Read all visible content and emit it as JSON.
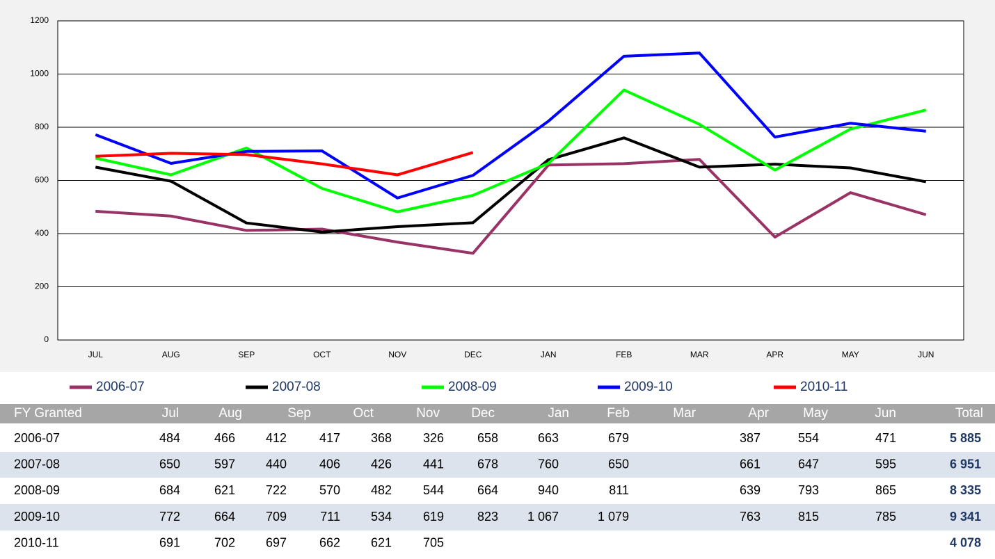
{
  "chart_data": {
    "type": "line",
    "categories": [
      "JUL",
      "AUG",
      "SEP",
      "OCT",
      "NOV",
      "DEC",
      "JAN",
      "FEB",
      "MAR",
      "APR",
      "MAY",
      "JUN"
    ],
    "series": [
      {
        "name": "2006-07",
        "color": "#993366",
        "values": [
          484,
          466,
          412,
          417,
          368,
          326,
          658,
          663,
          679,
          387,
          554,
          471
        ]
      },
      {
        "name": "2007-08",
        "color": "#000000",
        "values": [
          650,
          597,
          440,
          406,
          426,
          441,
          678,
          760,
          650,
          661,
          647,
          595
        ]
      },
      {
        "name": "2008-09",
        "color": "#00ff00",
        "values": [
          684,
          621,
          722,
          570,
          482,
          544,
          664,
          940,
          811,
          639,
          793,
          865
        ]
      },
      {
        "name": "2009-10",
        "color": "#0000ff",
        "values": [
          772,
          664,
          709,
          711,
          534,
          619,
          823,
          1067,
          1079,
          763,
          815,
          785
        ]
      },
      {
        "name": "2010-11",
        "color": "#ff0000",
        "values": [
          691,
          702,
          697,
          662,
          621,
          705,
          null,
          null,
          null,
          null,
          null,
          null
        ]
      }
    ],
    "ylim": [
      0,
      1200
    ],
    "yticks": [
      0,
      200,
      400,
      600,
      800,
      1000,
      1200
    ],
    "grid": true
  },
  "table": {
    "header": [
      "FY Granted",
      "Jul",
      "Aug",
      "Sep",
      "Oct",
      "Nov",
      "Dec",
      "Jan",
      "Feb",
      "Mar",
      "Apr",
      "May",
      "Jun",
      "Total"
    ],
    "rows": [
      [
        "2006-07",
        "484",
        "466",
        "412",
        "417",
        "368",
        "326",
        "658",
        "663",
        "679",
        "387",
        "554",
        "471",
        "5 885"
      ],
      [
        "2007-08",
        "650",
        "597",
        "440",
        "406",
        "426",
        "441",
        "678",
        "760",
        "650",
        "661",
        "647",
        "595",
        "6 951"
      ],
      [
        "2008-09",
        "684",
        "621",
        "722",
        "570",
        "482",
        "544",
        "664",
        "940",
        "811",
        "639",
        "793",
        "865",
        "8 335"
      ],
      [
        "2009-10",
        "772",
        "664",
        "709",
        "711",
        "534",
        "619",
        "823",
        "1 067",
        "1 079",
        "763",
        "815",
        "785",
        "9 341"
      ],
      [
        "2010-11",
        "691",
        "702",
        "697",
        "662",
        "621",
        "705",
        "",
        "",
        "",
        "",
        "",
        "",
        "4 078"
      ]
    ]
  }
}
